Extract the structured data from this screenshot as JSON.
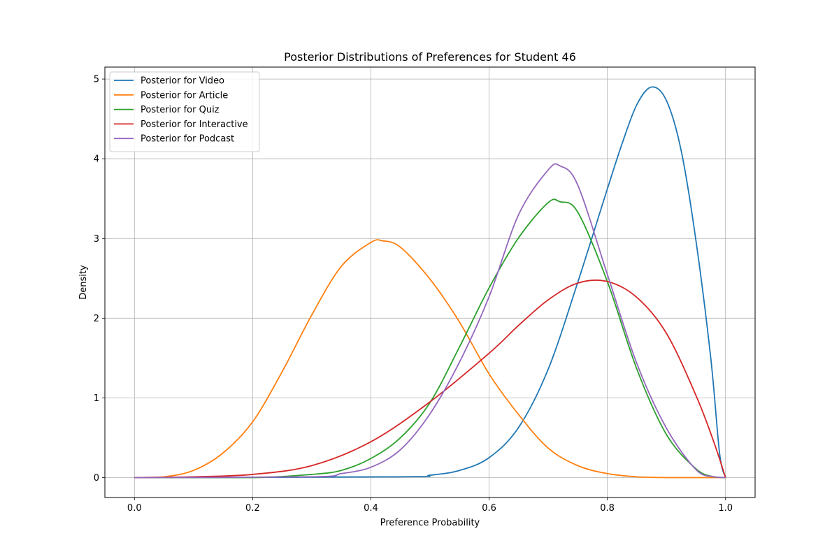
{
  "chart_data": {
    "type": "line",
    "title": "Posterior Distributions of Preferences for Student 46",
    "xlabel": "Preference Probability",
    "ylabel": "Density",
    "xlim": [
      -0.05,
      1.05
    ],
    "ylim": [
      -0.25,
      5.15
    ],
    "xticks": [
      0.0,
      0.2,
      0.4,
      0.6,
      0.8,
      1.0
    ],
    "xtick_labels": [
      "0.0",
      "0.2",
      "0.4",
      "0.6",
      "0.8",
      "1.0"
    ],
    "yticks": [
      0,
      1,
      2,
      3,
      4,
      5
    ],
    "ytick_labels": [
      "0",
      "1",
      "2",
      "3",
      "4",
      "5"
    ],
    "grid": true,
    "legend_position": "top-left",
    "series": [
      {
        "name": "Posterior for Video",
        "color": "#1f77b4",
        "x": [
          0.0,
          0.45,
          0.5,
          0.55,
          0.6,
          0.65,
          0.7,
          0.75,
          0.8,
          0.825,
          0.85,
          0.875,
          0.9,
          0.925,
          0.95,
          0.975,
          0.99,
          1.0
        ],
        "y": [
          0.0,
          0.01,
          0.03,
          0.09,
          0.25,
          0.63,
          1.36,
          2.45,
          3.62,
          4.19,
          4.68,
          4.9,
          4.73,
          4.1,
          2.97,
          1.5,
          0.3,
          0.0
        ]
      },
      {
        "name": "Posterior for Article",
        "color": "#ff7f0e",
        "x": [
          0.0,
          0.05,
          0.1,
          0.15,
          0.2,
          0.25,
          0.3,
          0.35,
          0.4,
          0.42,
          0.45,
          0.5,
          0.55,
          0.6,
          0.65,
          0.7,
          0.75,
          0.8,
          0.85,
          0.9,
          0.95,
          1.0
        ],
        "y": [
          0.0,
          0.01,
          0.09,
          0.31,
          0.7,
          1.33,
          2.04,
          2.65,
          2.95,
          2.97,
          2.89,
          2.49,
          1.95,
          1.3,
          0.79,
          0.37,
          0.15,
          0.05,
          0.01,
          0.0,
          0.0,
          0.0
        ]
      },
      {
        "name": "Posterior for Quiz",
        "color": "#2ca02c",
        "x": [
          0.0,
          0.2,
          0.3,
          0.35,
          0.4,
          0.45,
          0.5,
          0.55,
          0.6,
          0.65,
          0.7,
          0.72,
          0.75,
          0.8,
          0.85,
          0.9,
          0.95,
          0.98,
          1.0
        ],
        "y": [
          0.0,
          0.0,
          0.04,
          0.09,
          0.24,
          0.5,
          0.94,
          1.64,
          2.38,
          3.01,
          3.45,
          3.46,
          3.33,
          2.46,
          1.36,
          0.54,
          0.11,
          0.01,
          0.0
        ]
      },
      {
        "name": "Posterior for Interactive",
        "color": "#d62728",
        "x": [
          0.0,
          0.1,
          0.2,
          0.3,
          0.4,
          0.5,
          0.6,
          0.65,
          0.7,
          0.75,
          0.8,
          0.85,
          0.9,
          0.95,
          0.98,
          1.0
        ],
        "y": [
          0.0,
          0.01,
          0.04,
          0.15,
          0.45,
          0.95,
          1.56,
          1.91,
          2.23,
          2.44,
          2.46,
          2.26,
          1.81,
          1.03,
          0.45,
          0.0
        ]
      },
      {
        "name": "Posterior for Podcast",
        "color": "#9467bd",
        "x": [
          0.0,
          0.3,
          0.35,
          0.4,
          0.45,
          0.5,
          0.55,
          0.6,
          0.65,
          0.7,
          0.72,
          0.75,
          0.8,
          0.85,
          0.9,
          0.95,
          0.98,
          1.0
        ],
        "y": [
          0.0,
          0.01,
          0.05,
          0.13,
          0.35,
          0.8,
          1.45,
          2.27,
          3.3,
          3.86,
          3.91,
          3.67,
          2.55,
          1.43,
          0.62,
          0.1,
          0.01,
          0.0
        ]
      }
    ]
  }
}
